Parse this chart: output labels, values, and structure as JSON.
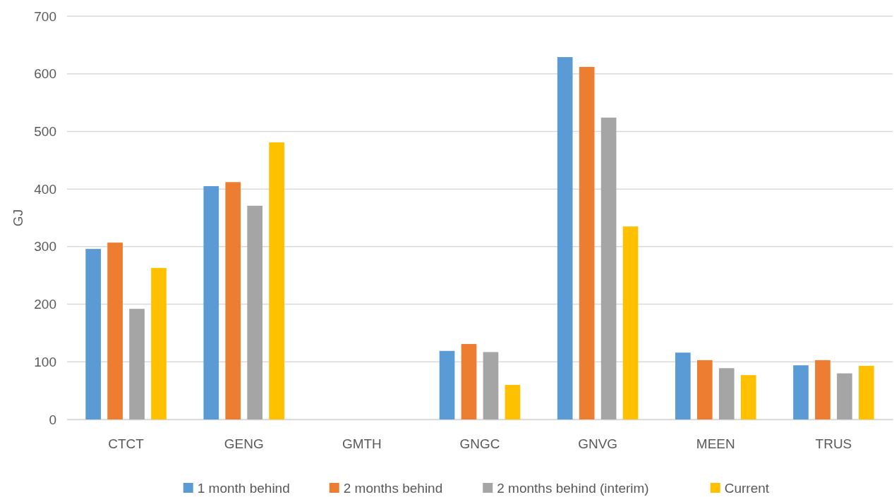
{
  "chart_data": {
    "type": "bar",
    "ylabel": "GJ",
    "categories": [
      "CTCT",
      "GENG",
      "GMTH",
      "GNGC",
      "GNVG",
      "MEEN",
      "TRUS"
    ],
    "series": [
      {
        "name": "1 month behind",
        "color": "#5b9bd5",
        "values": [
          296,
          405,
          0,
          119,
          629,
          116,
          94
        ]
      },
      {
        "name": "2 months behind",
        "color": "#ed7d31",
        "values": [
          307,
          412,
          0,
          131,
          612,
          103,
          103
        ]
      },
      {
        "name": "2 months behind (interim)",
        "color": "#a5a5a5",
        "values": [
          192,
          371,
          0,
          117,
          524,
          89,
          80
        ]
      },
      {
        "name": "Current",
        "color": "#ffc000",
        "values": [
          263,
          481,
          0,
          60,
          335,
          77,
          93
        ]
      }
    ],
    "ylim": [
      0,
      700
    ],
    "yticks": [
      0,
      100,
      200,
      300,
      400,
      500,
      600,
      700
    ],
    "grid": "y",
    "legend": "bottom"
  }
}
